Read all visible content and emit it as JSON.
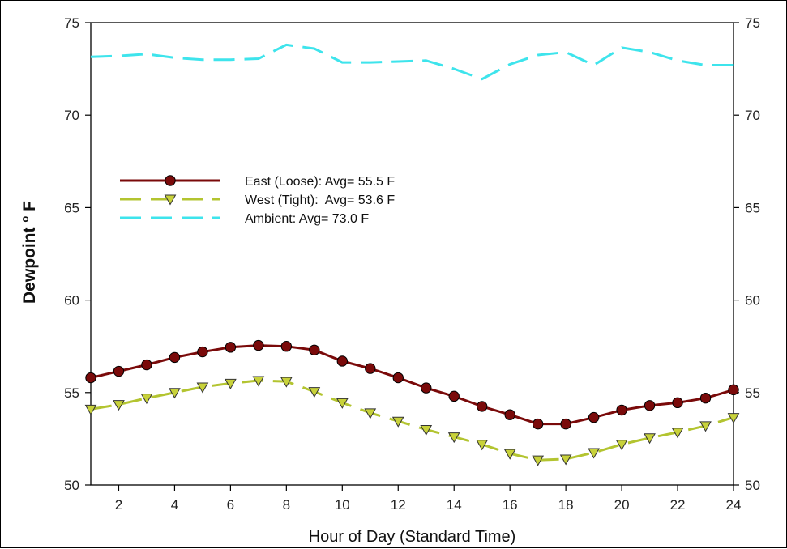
{
  "chart_data": {
    "type": "line",
    "xlabel": "Hour of Day (Standard Time)",
    "ylabel": "Dewpoint",
    "ylabel_superscript": "o",
    "ylabel_unit": "F",
    "xlim": [
      1,
      24
    ],
    "ylim": [
      50,
      75
    ],
    "x_ticks": [
      2,
      4,
      6,
      8,
      10,
      12,
      14,
      16,
      18,
      20,
      22,
      24
    ],
    "y_ticks": [
      50,
      55,
      60,
      65,
      70,
      75
    ],
    "grid": false,
    "legend_position": "upper-left",
    "x": [
      1,
      2,
      3,
      4,
      5,
      6,
      7,
      8,
      9,
      10,
      11,
      12,
      13,
      14,
      15,
      16,
      17,
      18,
      19,
      20,
      21,
      22,
      23,
      24
    ],
    "series": [
      {
        "name": "East (Loose): Avg= 55.5 F",
        "color": "#7a0a0a",
        "marker": "circle",
        "marker_color": "#7a0a0a",
        "line_style": "solid",
        "values": [
          55.8,
          56.15,
          56.5,
          56.9,
          57.2,
          57.45,
          57.55,
          57.5,
          57.3,
          56.7,
          56.3,
          55.8,
          55.25,
          54.8,
          54.25,
          53.8,
          53.3,
          53.3,
          53.65,
          54.05,
          54.3,
          54.45,
          54.7,
          55.15
        ]
      },
      {
        "name": "West (Tight):  Avg= 53.6 F",
        "color": "#b3c430",
        "marker": "triangle-down",
        "marker_color": "#c8d23a",
        "line_style": "dashed",
        "values": [
          54.1,
          54.35,
          54.7,
          55.0,
          55.3,
          55.5,
          55.65,
          55.6,
          55.05,
          54.45,
          53.9,
          53.45,
          53.0,
          52.6,
          52.2,
          51.7,
          51.35,
          51.4,
          51.75,
          52.2,
          52.55,
          52.85,
          53.2,
          53.65
        ]
      },
      {
        "name": "Ambient: Avg= 73.0 F",
        "color": "#3ee4ec",
        "marker": "none",
        "marker_color": "#3ee4ec",
        "line_style": "dashed",
        "values": [
          73.15,
          73.2,
          73.3,
          73.1,
          73.0,
          73.0,
          73.05,
          73.8,
          73.6,
          72.85,
          72.85,
          72.9,
          72.95,
          72.5,
          71.95,
          72.75,
          73.25,
          73.4,
          72.7,
          73.65,
          73.4,
          72.95,
          72.7,
          72.7
        ]
      }
    ]
  }
}
